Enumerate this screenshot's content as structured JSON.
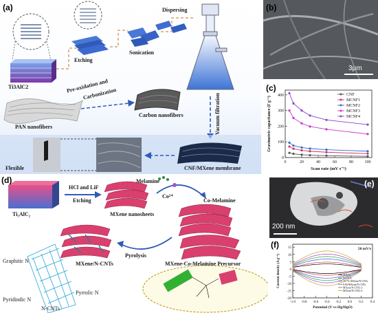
{
  "panel_a": {
    "label": "(a)",
    "ti3alc2": "Ti3AlC2",
    "etching": "Etching",
    "sonication": "Sonication",
    "dispersing": "Dispersing",
    "preox": "Pre-oxidation and",
    "carbonization": "Carbonization",
    "carbon_nanofibers": "Carbon nanofibers",
    "pan_nanofibers": "PAN nanofibers",
    "vacuum_filtration": "Vacuum filtration",
    "flexible": "Flexible",
    "membrane": "CNF/MXene membrane"
  },
  "panel_b": {
    "label": "(b)",
    "scale": "3μm"
  },
  "panel_c": {
    "label": "(c)"
  },
  "panel_d": {
    "label": "(d)",
    "ti3alc2": "Ti₃AlC₂",
    "hcl_lif": "HCl and LiF",
    "etching": "Etching",
    "melamine": "Melamine",
    "co2": "Co²⁺",
    "co_melamine": "Co-Melamine",
    "mxene_nanosheets": "MXene nanosheets",
    "pyrolysis": "Pyrolysis",
    "mxene_ncnts": "MXene/N-CNTs",
    "precursor": "MXene-Co-Melamine Precursor",
    "graphitic_n": "Graphitic N",
    "pyrrolic_n": "Pyrrolic N",
    "pyridinic_n": "Pyridindic N",
    "ncnts": "N-CNTs"
  },
  "panel_e": {
    "label": "(e)",
    "scale": "200 nm"
  },
  "panel_f": {
    "label": "(f)"
  },
  "chart_data": [
    {
      "type": "line",
      "panel": "(c)",
      "xlabel": "Scan rate (mV s⁻¹)",
      "ylabel": "Gravimetric capacitance (F g⁻¹)",
      "x_ticks": [
        0,
        20,
        40,
        60,
        80,
        100
      ],
      "y_ticks": [
        0,
        100,
        200,
        300,
        400
      ],
      "xlim": [
        0,
        105
      ],
      "ylim": [
        0,
        430
      ],
      "x": [
        5,
        10,
        20,
        30,
        50,
        100
      ],
      "series": [
        {
          "name": "CNF",
          "color": "#555555",
          "values": [
            30,
            24,
            18,
            15,
            12,
            8
          ]
        },
        {
          "name": "MCNF1",
          "color": "#cc3366",
          "values": [
            70,
            56,
            46,
            40,
            34,
            25
          ]
        },
        {
          "name": "MCNF2",
          "color": "#3366cc",
          "values": [
            95,
            76,
            64,
            57,
            50,
            40
          ]
        },
        {
          "name": "MCNF3",
          "color": "#cc33cc",
          "values": [
            300,
            252,
            218,
            198,
            180,
            150
          ]
        },
        {
          "name": "MCNF4",
          "color": "#8844cc",
          "values": [
            410,
            345,
            300,
            268,
            240,
            210
          ]
        }
      ]
    },
    {
      "type": "line",
      "panel": "(f)",
      "title": "50 mV/s",
      "xlabel": "Potential (V vs Hg/HgO)",
      "ylabel": "Current density (A g⁻¹)",
      "x_ticks": [
        "-1.0",
        "-0.8",
        "-0.6",
        "-0.4",
        "-0.2",
        "0.0",
        "0.2",
        "0.4"
      ],
      "y_ticks": [
        "-20",
        "-15",
        "-10",
        "-5",
        "0",
        "5",
        "10",
        "15"
      ],
      "xlim": [
        -1.0,
        0.4
      ],
      "ylim": [
        -20,
        17
      ],
      "series": [
        {
          "name": "MXene",
          "color": "#000000",
          "amp": 4
        },
        {
          "name": "N-CNTs",
          "color": "#d94040",
          "amp": 5.5
        },
        {
          "name": "20.7%-MXene/N-CNTs",
          "color": "#3a5fcd",
          "amp": 8
        },
        {
          "name": "0.60-MXene/N-CNTs",
          "color": "#2e9e4a",
          "amp": 10
        },
        {
          "name": "MXene/N-CNTs-3",
          "color": "#9a4ac4",
          "amp": 12
        },
        {
          "name": "MXene/N-CNTs-4",
          "color": "#c4a020",
          "amp": 14.5
        }
      ]
    }
  ]
}
